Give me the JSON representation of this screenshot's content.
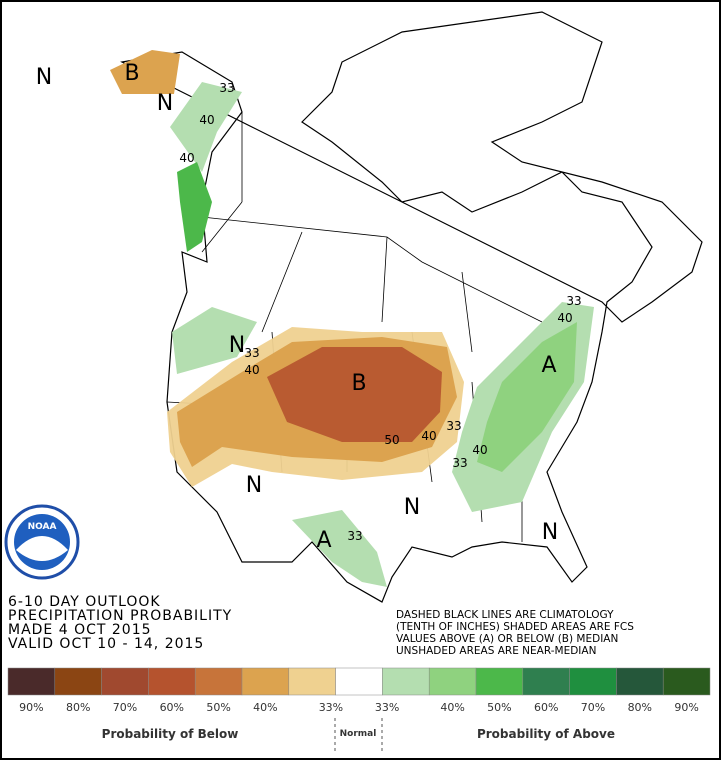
{
  "header": {
    "logo": "NOAA"
  },
  "map_labels": {
    "regions": [
      "B",
      "N",
      "N",
      "B",
      "N",
      "A",
      "N",
      "A",
      "N",
      "N"
    ],
    "contours": [
      "33",
      "40",
      "40",
      "33",
      "40",
      "50",
      "40",
      "33",
      "33",
      "40",
      "40",
      "33",
      "33"
    ]
  },
  "title_block": {
    "lines": [
      "6-10 DAY OUTLOOK",
      "PRECIPITATION PROBABILITY",
      "MADE   4 OCT 2015",
      "VALID   OCT 10 - 14, 2015"
    ]
  },
  "notes": {
    "lines": [
      "DASHED BLACK LINES ARE CLIMATOLOGY",
      "(TENTH OF INCHES) SHADED AREAS ARE FCS",
      "VALUES ABOVE (A) OR BELOW (B) MEDIAN",
      "UNSHADED AREAS ARE NEAR-MEDIAN"
    ]
  },
  "legend": {
    "colors": [
      "#4a2a2a",
      "#8b4513",
      "#a0492f",
      "#b5532e",
      "#c7743a",
      "#dca34f",
      "#efd190",
      "#ffffff",
      "#b4deb0",
      "#8fd27f",
      "#4cb84a",
      "#2f7f4f",
      "#1f8f3f",
      "#25573a",
      "#2a5a1e"
    ],
    "labels": [
      "90%",
      "80%",
      "70%",
      "60%",
      "50%",
      "40%",
      "33%",
      "33%",
      "40%",
      "50%",
      "60%",
      "70%",
      "80%",
      "90%"
    ],
    "below_label": "Probability of Below",
    "normal_label": "Normal",
    "above_label": "Probability of Above"
  }
}
